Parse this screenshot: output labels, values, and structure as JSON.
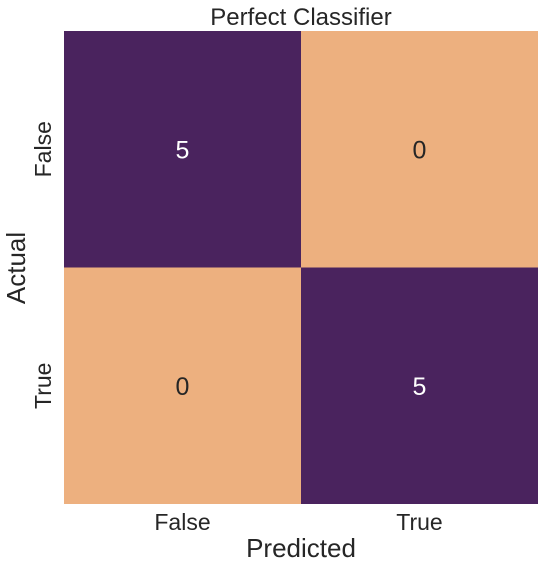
{
  "chart_data": {
    "type": "heatmap",
    "title": "Perfect Classifier",
    "xlabel": "Predicted",
    "ylabel": "Actual",
    "x_categories": [
      "False",
      "True"
    ],
    "y_categories": [
      "False",
      "True"
    ],
    "values": [
      [
        5,
        0
      ],
      [
        0,
        5
      ]
    ],
    "colors": {
      "high": "#4a235e",
      "low": "#edb07f"
    },
    "label_colors": {
      "on_high": "#ffffff",
      "on_low": "#262626"
    },
    "colorbar": false,
    "grid": false
  }
}
